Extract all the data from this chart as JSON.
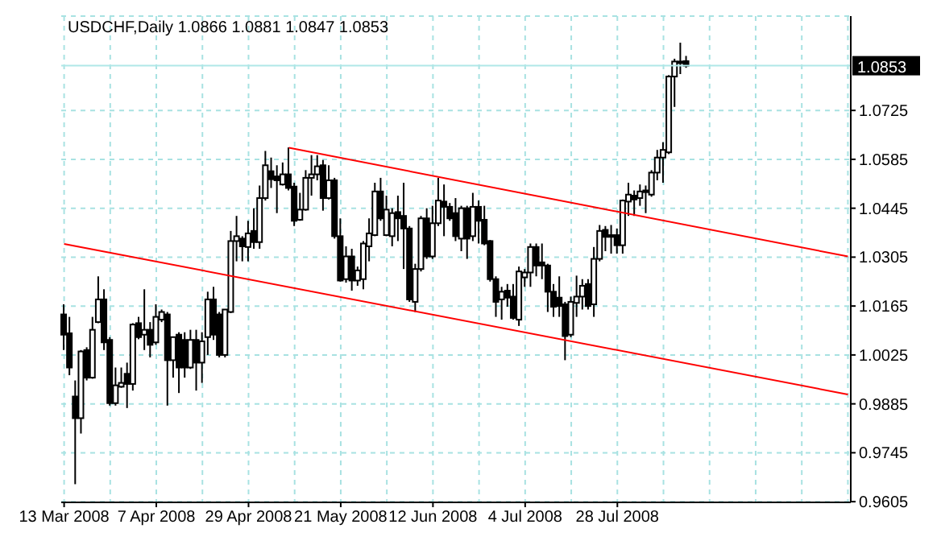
{
  "chart_data": {
    "type": "candlestick",
    "title": "USDCHF,Daily 1.0866 1.0881 1.0847 1.0853",
    "categories": [
      "13 Mar 2008",
      null,
      null,
      null,
      null,
      null,
      null,
      null,
      null,
      null,
      null,
      null,
      null,
      null,
      null,
      null,
      "7 Apr 2008",
      null,
      null,
      null,
      null,
      null,
      null,
      null,
      null,
      null,
      null,
      null,
      null,
      null,
      null,
      null,
      "29 Apr 2008",
      null,
      null,
      null,
      null,
      null,
      null,
      null,
      null,
      null,
      null,
      null,
      null,
      null,
      null,
      null,
      "21 May 2008",
      null,
      null,
      null,
      null,
      null,
      null,
      null,
      null,
      null,
      null,
      null,
      null,
      null,
      null,
      null,
      "12 Jun 2008",
      null,
      null,
      null,
      null,
      null,
      null,
      null,
      null,
      null,
      null,
      null,
      null,
      null,
      null,
      null,
      "4 Jul 2008",
      null,
      null,
      null,
      null,
      null,
      null,
      null,
      null,
      null,
      null,
      null,
      null,
      null,
      null,
      null,
      "28 Jul 2008",
      null,
      null,
      null,
      null,
      null,
      null,
      null,
      null,
      null,
      null,
      null,
      null,
      null,
      null,
      null,
      null,
      null,
      null,
      null,
      null,
      null,
      null,
      null,
      null,
      null,
      null,
      null,
      null,
      null,
      null,
      null,
      null,
      null,
      null,
      null,
      null,
      null,
      null,
      null,
      null
    ],
    "ohlc": [
      [
        1.0141,
        1.017,
        1.0039,
        1.0083
      ],
      [
        1.0087,
        1.0134,
        0.9967,
        0.9989
      ],
      [
        0.9906,
        0.9952,
        0.9655,
        0.9844
      ],
      [
        0.9844,
        1.0039,
        0.98,
        1.0035
      ],
      [
        1.0039,
        1.0047,
        0.9952,
        0.996
      ],
      [
        0.996,
        1.0134,
        0.9957,
        1.0097
      ],
      [
        1.0119,
        1.025,
        1.0116,
        1.0184
      ],
      [
        1.0184,
        1.0213,
        1.0039,
        1.0061
      ],
      [
        1.0068,
        1.0076,
        0.988,
        0.9887
      ],
      [
        0.9887,
        0.9989,
        0.988,
        0.9938
      ],
      [
        0.9934,
        0.9989,
        0.9931,
        0.9945
      ],
      [
        0.9971,
        1.0003,
        0.9873,
        0.9942
      ],
      [
        0.9942,
        1.0116,
        0.9923,
        1.0112
      ],
      [
        1.0116,
        1.0134,
        1.007,
        1.0076
      ],
      [
        1.0083,
        1.0213,
        1.0039,
        1.0097
      ],
      [
        1.0097,
        1.0119,
        1.0018,
        1.0054
      ],
      [
        1.0061,
        1.017,
        1.0054,
        1.0134
      ],
      [
        1.0126,
        1.0155,
        1.0119,
        1.0148
      ],
      [
        1.0141,
        1.0148,
        0.988,
        1.001
      ],
      [
        1.001,
        1.0076,
        0.996,
        1.0076
      ],
      [
        1.0083,
        1.009,
        0.9916,
        0.9989
      ],
      [
        1.0068,
        1.009,
        0.996,
        0.9989
      ],
      [
        0.9989,
        1.0097,
        0.9985,
        1.0068
      ],
      [
        1.0068,
        1.0097,
        0.9923,
        1.0003
      ],
      [
        1.0003,
        1.009,
        0.9945,
        1.0064
      ],
      [
        1.0076,
        1.0206,
        1.0025,
        1.0184
      ],
      [
        1.0184,
        1.022,
        1.0068,
        1.0083
      ],
      [
        1.0141,
        1.0148,
        1.0018,
        1.0025
      ],
      [
        1.0025,
        1.0155,
        1.0018,
        1.0155
      ],
      [
        1.0148,
        1.038,
        1.0145,
        1.0351
      ],
      [
        1.0351,
        1.0423,
        1.0293,
        1.0365
      ],
      [
        1.0358,
        1.0365,
        1.0293,
        1.0336
      ],
      [
        1.0334,
        1.0409,
        1.0293,
        1.0373
      ],
      [
        1.038,
        1.0445,
        1.0329,
        1.0348
      ],
      [
        1.0348,
        1.051,
        1.0329,
        1.0474
      ],
      [
        1.0474,
        1.0609,
        1.0467,
        1.0568
      ],
      [
        1.0551,
        1.059,
        1.0503,
        1.0528
      ],
      [
        1.0536,
        1.0568,
        1.0431,
        1.0525
      ],
      [
        1.0513,
        1.0576,
        1.051,
        1.0542
      ],
      [
        1.0542,
        1.0619,
        1.0496,
        1.0503
      ],
      [
        1.0507,
        1.0518,
        1.0394,
        1.0409
      ],
      [
        1.0412,
        1.0489,
        1.0409,
        1.0441
      ],
      [
        1.0441,
        1.0554,
        1.0438,
        1.0532
      ],
      [
        1.0532,
        1.0597,
        1.0481,
        1.0542
      ],
      [
        1.0542,
        1.0597,
        1.0525,
        1.0565
      ],
      [
        1.0568,
        1.0583,
        1.0438,
        1.0474
      ],
      [
        1.0474,
        1.0568,
        1.047,
        1.0525
      ],
      [
        1.0525,
        1.0532,
        1.0358,
        1.0365
      ],
      [
        1.0365,
        1.0416,
        1.0235,
        1.0238
      ],
      [
        1.0242,
        1.0336,
        1.0232,
        1.0307
      ],
      [
        1.0307,
        1.0329,
        1.0209,
        1.0238
      ],
      [
        1.0238,
        1.0278,
        1.0223,
        1.0267
      ],
      [
        1.0242,
        1.0351,
        1.0213,
        1.0344
      ],
      [
        1.0336,
        1.0416,
        1.0293,
        1.0373
      ],
      [
        1.0368,
        1.0518,
        1.0365,
        1.0493
      ],
      [
        1.0493,
        1.0532,
        1.0409,
        1.0416
      ],
      [
        1.0368,
        1.0481,
        1.0365,
        1.0441
      ],
      [
        1.0365,
        1.0445,
        1.0336,
        1.0431
      ],
      [
        1.0434,
        1.0481,
        1.0351,
        1.0416
      ],
      [
        1.0423,
        1.0518,
        1.0271,
        1.0387
      ],
      [
        1.0387,
        1.0394,
        1.0177,
        1.0184
      ],
      [
        1.0177,
        1.0286,
        1.0148,
        1.0271
      ],
      [
        1.0271,
        1.0423,
        1.0264,
        1.0416
      ],
      [
        1.0416,
        1.0445,
        1.03,
        1.0307
      ],
      [
        1.0307,
        1.0452,
        1.03,
        1.0402
      ],
      [
        1.0402,
        1.0532,
        1.0394,
        1.0467
      ],
      [
        1.0464,
        1.0513,
        1.0365,
        1.0449
      ],
      [
        1.0449,
        1.046,
        1.0409,
        1.0416
      ],
      [
        1.0431,
        1.0474,
        1.0351,
        1.0365
      ],
      [
        1.0358,
        1.0452,
        1.0322,
        1.0445
      ],
      [
        1.0445,
        1.0452,
        1.03,
        1.0358
      ],
      [
        1.0365,
        1.0489,
        1.0351,
        1.0449
      ],
      [
        1.0449,
        1.0467,
        1.0344,
        1.0409
      ],
      [
        1.0412,
        1.0452,
        1.0339,
        1.0344
      ],
      [
        1.0351,
        1.0354,
        1.0235,
        1.0242
      ],
      [
        1.0242,
        1.025,
        1.0134,
        1.0177
      ],
      [
        1.0184,
        1.022,
        1.0126,
        1.0206
      ],
      [
        1.0209,
        1.0228,
        1.0163,
        1.0189
      ],
      [
        1.0192,
        1.0228,
        1.0126,
        1.0131
      ],
      [
        1.0126,
        1.0278,
        1.0108,
        1.0264
      ],
      [
        1.0247,
        1.0271,
        1.022,
        1.0261
      ],
      [
        1.0261,
        1.0344,
        1.022,
        1.0334
      ],
      [
        1.0334,
        1.0344,
        1.025,
        1.0281
      ],
      [
        1.029,
        1.0344,
        1.0242,
        1.0281
      ],
      [
        1.0281,
        1.0286,
        1.0148,
        1.0206
      ],
      [
        1.0206,
        1.0228,
        1.0134,
        1.0163
      ],
      [
        1.0189,
        1.025,
        1.0134,
        1.0165
      ],
      [
        1.017,
        1.0177,
        1.001,
        1.0079
      ],
      [
        1.0083,
        1.0192,
        1.0076,
        1.0177
      ],
      [
        1.0174,
        1.0252,
        1.0134,
        1.0192
      ],
      [
        1.0192,
        1.0242,
        1.0155,
        1.0223
      ],
      [
        1.0228,
        1.0242,
        1.0155,
        1.0165
      ],
      [
        1.017,
        1.0334,
        1.0134,
        1.03
      ],
      [
        1.03,
        1.0397,
        1.0293,
        1.038
      ],
      [
        1.0383,
        1.0394,
        1.0322,
        1.0363
      ],
      [
        1.0368,
        1.0397,
        1.0315,
        1.0363
      ],
      [
        1.0368,
        1.0387,
        1.0315,
        1.0339
      ],
      [
        1.0339,
        1.047,
        1.0315,
        1.0467
      ],
      [
        1.0464,
        1.0518,
        1.0423,
        1.0484
      ],
      [
        1.0481,
        1.0496,
        1.0423,
        1.047
      ],
      [
        1.0474,
        1.0513,
        1.0452,
        1.0493
      ],
      [
        1.0496,
        1.051,
        1.0431,
        1.0491
      ],
      [
        1.0484,
        1.0554,
        1.0478,
        1.0547
      ],
      [
        1.0547,
        1.0612,
        1.0525,
        1.059
      ],
      [
        1.059,
        1.0634,
        1.0518,
        1.0612
      ],
      [
        1.0605,
        1.0826,
        1.06,
        1.0822
      ],
      [
        1.0822,
        1.0873,
        1.0735,
        1.0865
      ],
      [
        1.0865,
        1.0919,
        1.0829,
        1.0862
      ],
      [
        1.0866,
        1.0881,
        1.0847,
        1.0853
      ],
      null,
      null,
      null,
      null,
      null,
      null,
      null,
      null,
      null,
      null,
      null,
      null,
      null,
      null,
      null,
      null,
      null,
      null,
      null,
      null,
      null,
      null,
      null,
      null,
      null,
      null,
      null,
      null
    ],
    "series": [
      {
        "type": "line",
        "color": "#ff0000",
        "values": [
          null,
          null,
          null,
          null,
          null,
          null,
          null,
          null,
          null,
          null,
          null,
          null,
          null,
          null,
          null,
          null,
          null,
          null,
          null,
          null,
          null,
          null,
          null,
          null,
          null,
          null,
          null,
          null,
          null,
          null,
          null,
          null,
          null,
          null,
          null,
          null,
          null,
          null,
          null,
          1.0618,
          null,
          null,
          null,
          null,
          null,
          null,
          null,
          null,
          null,
          null,
          null,
          null,
          null,
          null,
          null,
          null,
          null,
          null,
          null,
          null,
          null,
          null,
          null,
          null,
          null,
          null,
          null,
          null,
          null,
          null,
          null,
          null,
          null,
          null,
          null,
          null,
          null,
          null,
          null,
          null,
          null,
          null,
          null,
          null,
          null,
          null,
          null,
          null,
          null,
          null,
          null,
          null,
          null,
          null,
          null,
          null,
          null,
          null,
          null,
          null,
          null,
          null,
          null,
          null,
          null,
          null,
          null,
          null,
          null,
          null,
          null,
          null,
          null,
          null,
          null,
          null,
          null,
          null,
          null,
          null,
          null,
          null,
          null,
          null,
          null,
          null,
          null,
          null,
          null,
          null,
          null,
          null,
          null,
          null,
          null,
          null,
          1.0307
        ]
      },
      {
        "type": "line",
        "color": "#ff0000",
        "values": [
          1.0343,
          null,
          null,
          null,
          null,
          null,
          null,
          null,
          null,
          null,
          null,
          null,
          null,
          null,
          null,
          null,
          null,
          null,
          null,
          null,
          null,
          null,
          null,
          null,
          null,
          null,
          null,
          null,
          null,
          null,
          null,
          null,
          null,
          null,
          null,
          null,
          null,
          null,
          null,
          null,
          null,
          null,
          null,
          null,
          null,
          null,
          null,
          null,
          null,
          null,
          null,
          null,
          null,
          null,
          null,
          null,
          null,
          null,
          null,
          null,
          null,
          null,
          null,
          null,
          null,
          null,
          null,
          null,
          null,
          null,
          null,
          null,
          null,
          null,
          null,
          null,
          null,
          null,
          null,
          null,
          null,
          null,
          null,
          null,
          null,
          null,
          null,
          null,
          null,
          null,
          null,
          null,
          null,
          null,
          null,
          null,
          null,
          null,
          null,
          null,
          null,
          null,
          null,
          null,
          null,
          null,
          null,
          null,
          null,
          null,
          null,
          null,
          null,
          null,
          null,
          null,
          null,
          null,
          null,
          null,
          null,
          null,
          null,
          null,
          null,
          null,
          null,
          null,
          null,
          null,
          null,
          null,
          null,
          null,
          null,
          null,
          0.9912
        ]
      }
    ],
    "ylim": [
      0.9603,
      1.0995
    ],
    "yticks": [
      0.9605,
      0.9745,
      0.9885,
      1.0025,
      1.0165,
      1.0305,
      1.0445,
      1.0585,
      1.0725
    ],
    "ref_lines": [
      {
        "axis": "y",
        "value": 1.0853,
        "label": "1.0853",
        "color": "#b0e8e8"
      }
    ],
    "grid": true
  }
}
